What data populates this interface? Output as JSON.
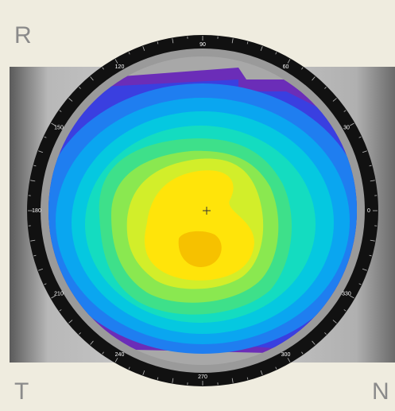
{
  "corners": {
    "top_left": "R",
    "bottom_left": "T",
    "bottom_right": "N"
  },
  "dial_labels": [
    "0",
    "30",
    "60",
    "90",
    "120",
    "150",
    "180",
    "210",
    "240",
    "270",
    "300",
    "330"
  ]
}
